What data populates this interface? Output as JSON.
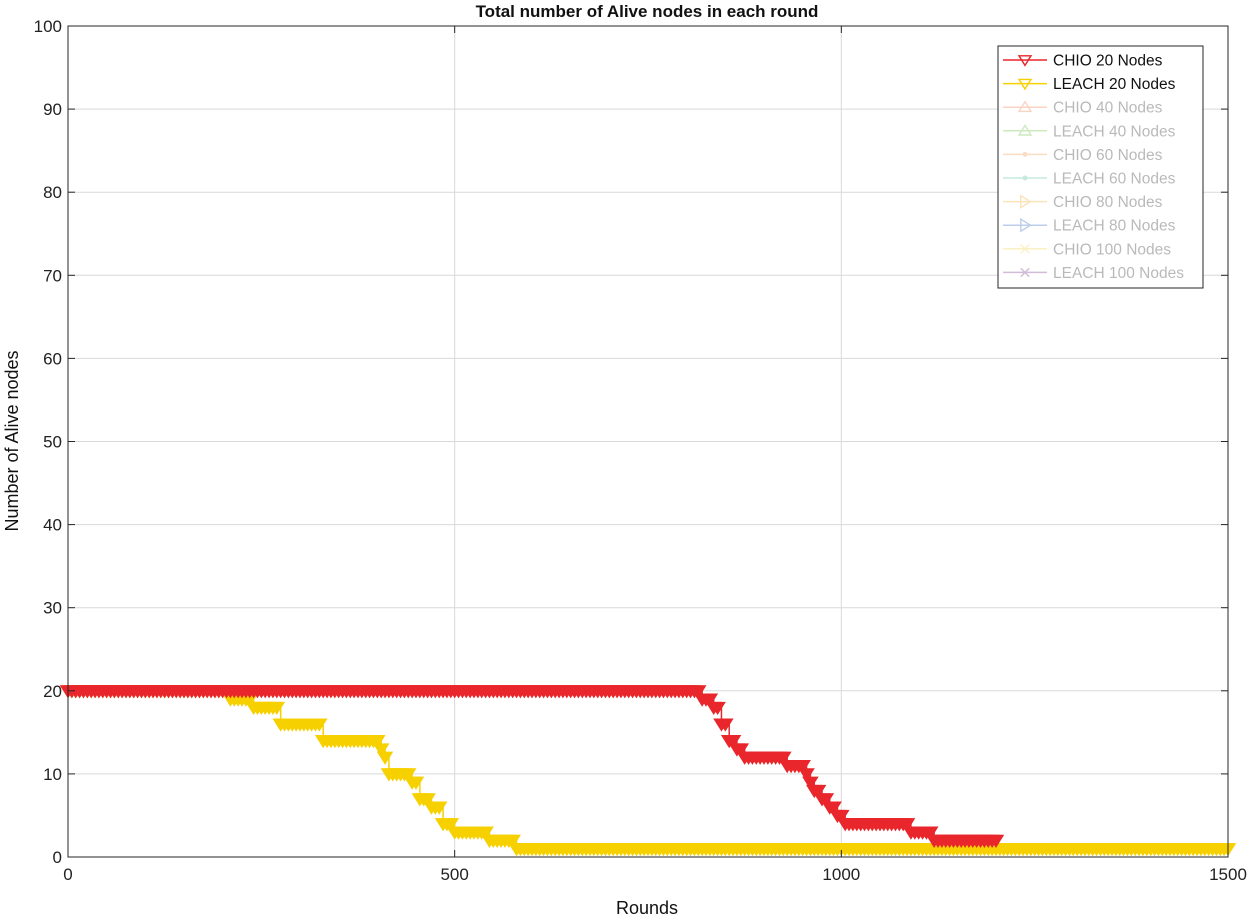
{
  "chart_data": {
    "type": "line",
    "title": "Total number of Alive nodes in each round",
    "xlabel": "Rounds",
    "ylabel": "Number of Alive nodes",
    "xlim": [
      0,
      1500
    ],
    "ylim": [
      0,
      100
    ],
    "x_ticks": [
      "0",
      "500",
      "1000",
      "1500"
    ],
    "y_ticks": [
      "0",
      "10",
      "20",
      "30",
      "40",
      "50",
      "60",
      "70",
      "80",
      "90",
      "100"
    ],
    "grid": true,
    "legend_position": "top-right",
    "series": [
      {
        "name": "CHIO 20 Nodes",
        "color": "#e8262b",
        "marker": "triangle-down",
        "visible": true,
        "steps": [
          [
            0,
            20
          ],
          [
            820,
            19
          ],
          [
            835,
            18
          ],
          [
            845,
            16
          ],
          [
            855,
            14
          ],
          [
            865,
            13
          ],
          [
            875,
            12
          ],
          [
            930,
            11
          ],
          [
            955,
            10
          ],
          [
            960,
            9
          ],
          [
            965,
            8
          ],
          [
            975,
            7
          ],
          [
            985,
            6
          ],
          [
            995,
            5
          ],
          [
            1005,
            4
          ],
          [
            1090,
            3
          ],
          [
            1120,
            2
          ],
          [
            1200,
            2
          ]
        ]
      },
      {
        "name": "LEACH 20 Nodes",
        "color": "#f7d000",
        "marker": "triangle-down",
        "visible": true,
        "steps": [
          [
            0,
            20
          ],
          [
            210,
            19
          ],
          [
            240,
            18
          ],
          [
            275,
            16
          ],
          [
            330,
            14
          ],
          [
            405,
            13
          ],
          [
            410,
            12
          ],
          [
            415,
            10
          ],
          [
            445,
            9
          ],
          [
            455,
            7
          ],
          [
            470,
            6
          ],
          [
            485,
            4
          ],
          [
            500,
            3
          ],
          [
            545,
            2
          ],
          [
            580,
            1
          ],
          [
            1500,
            1
          ]
        ]
      },
      {
        "name": "CHIO 40 Nodes",
        "color": "#f4a07a",
        "marker": "triangle-up",
        "visible": false
      },
      {
        "name": "LEACH 40 Nodes",
        "color": "#8fd16e",
        "marker": "triangle-up",
        "visible": false
      },
      {
        "name": "CHIO 60 Nodes",
        "color": "#f6b27c",
        "marker": "dot",
        "visible": false
      },
      {
        "name": "LEACH 60 Nodes",
        "color": "#7fd2b8",
        "marker": "dot",
        "visible": false
      },
      {
        "name": "CHIO 80 Nodes",
        "color": "#f8c268",
        "marker": "triangle-right",
        "visible": false
      },
      {
        "name": "LEACH 80 Nodes",
        "color": "#6f93d8",
        "marker": "triangle-right",
        "visible": false
      },
      {
        "name": "CHIO 100 Nodes",
        "color": "#f5e27a",
        "marker": "x",
        "visible": false
      },
      {
        "name": "LEACH 100 Nodes",
        "color": "#9a6aa7",
        "marker": "x",
        "visible": false
      }
    ]
  }
}
